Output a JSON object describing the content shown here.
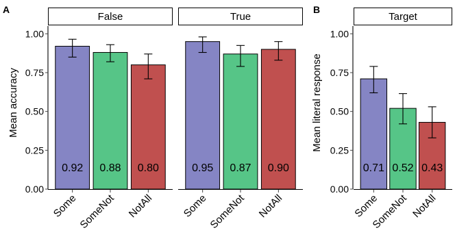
{
  "chart_data": [
    {
      "panel_tag": "A",
      "type": "bar",
      "ylabel": "Mean accuracy",
      "ylim": [
        0,
        1.05
      ],
      "yticks": [
        "0.00",
        "0.25",
        "0.50",
        "0.75",
        "1.00"
      ],
      "ytick_values": [
        0,
        0.25,
        0.5,
        0.75,
        1.0
      ],
      "categories": [
        "Some",
        "SomeNot",
        "NotAll"
      ],
      "facets": [
        {
          "strip": "False",
          "values": [
            0.92,
            0.88,
            0.8
          ],
          "labels": [
            "0.92",
            "0.88",
            "0.80"
          ],
          "err_low": [
            0.85,
            0.82,
            0.71
          ],
          "err_high": [
            0.965,
            0.93,
            0.87
          ]
        },
        {
          "strip": "True",
          "values": [
            0.95,
            0.87,
            0.9
          ],
          "labels": [
            "0.95",
            "0.87",
            "0.90"
          ],
          "err_low": [
            0.88,
            0.79,
            0.83
          ],
          "err_high": [
            0.98,
            0.925,
            0.95
          ]
        }
      ],
      "grid": false
    },
    {
      "panel_tag": "B",
      "type": "bar",
      "ylabel": "Mean literal response",
      "ylim": [
        0,
        1.05
      ],
      "yticks": [
        "0.00",
        "0.25",
        "0.50",
        "0.75",
        "1.00"
      ],
      "ytick_values": [
        0,
        0.25,
        0.5,
        0.75,
        1.0
      ],
      "categories": [
        "Some",
        "SomeNot",
        "NotAll"
      ],
      "facets": [
        {
          "strip": "Target",
          "values": [
            0.71,
            0.52,
            0.43
          ],
          "labels": [
            "0.71",
            "0.52",
            "0.43"
          ],
          "err_low": [
            0.62,
            0.42,
            0.33
          ],
          "err_high": [
            0.79,
            0.615,
            0.53
          ]
        }
      ],
      "grid": false
    }
  ],
  "colors": {
    "Some": "#8585C4",
    "SomeNot": "#56C587",
    "NotAll": "#C0504F",
    "strip_fill": "#ffffff",
    "axis": "#000000"
  }
}
